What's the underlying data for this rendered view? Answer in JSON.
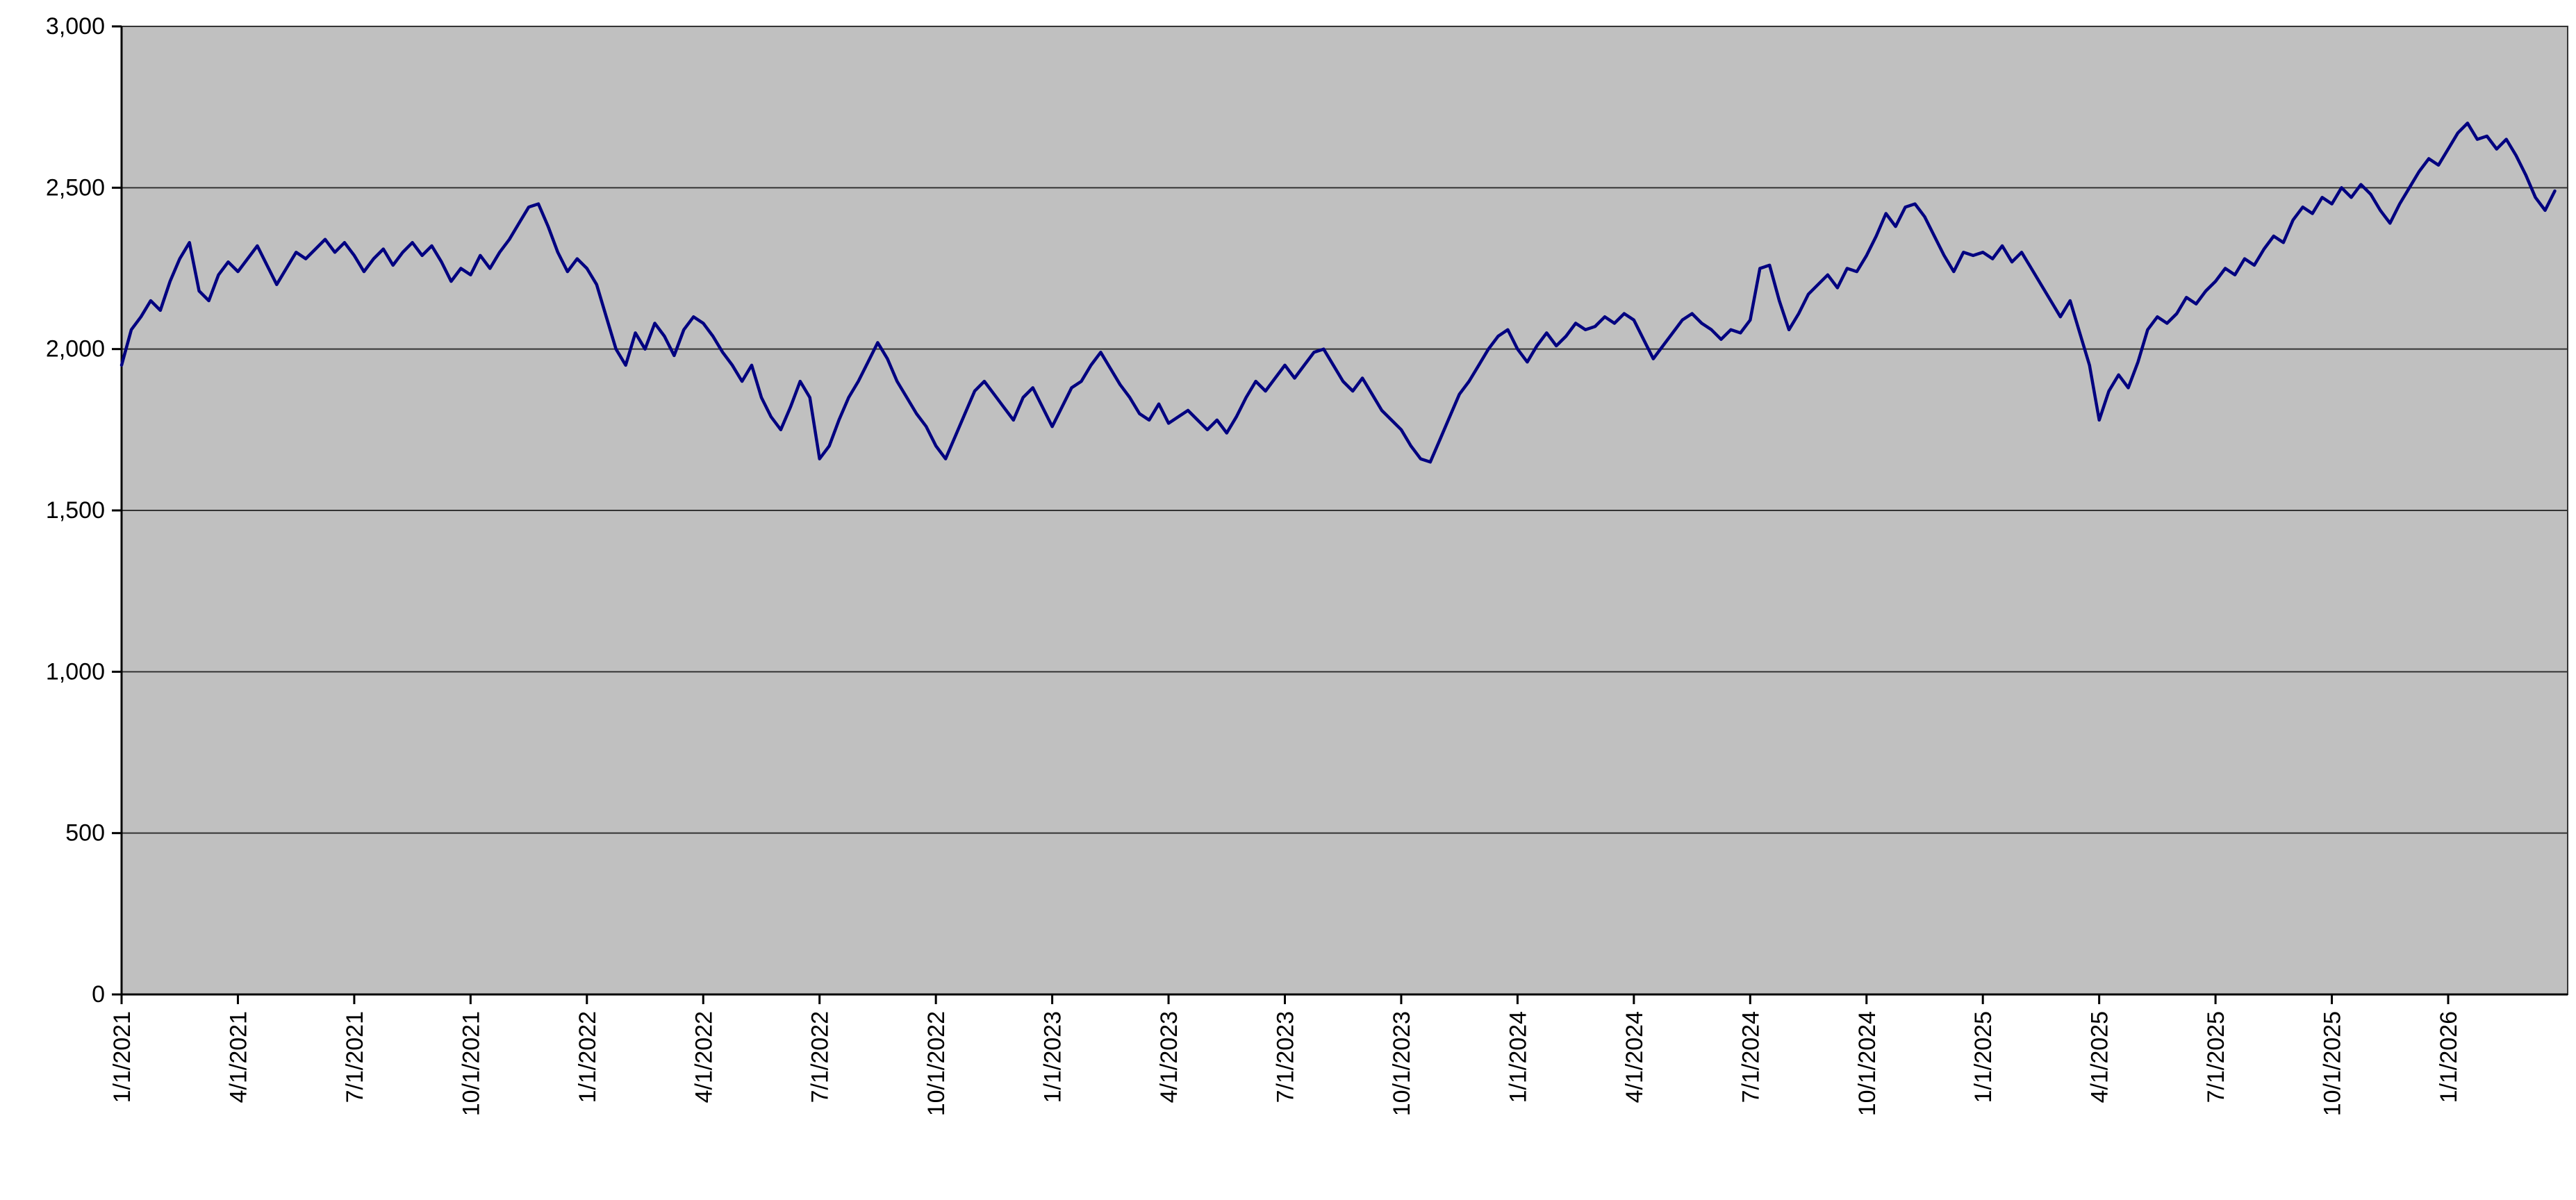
{
  "chart_data": {
    "type": "line",
    "title": "",
    "xlabel": "",
    "ylabel": "",
    "legend": false,
    "grid": "horizontal",
    "ylim": [
      0,
      3000
    ],
    "y_ticks": [
      0,
      500,
      1000,
      1500,
      2000,
      2500,
      3000
    ],
    "y_tick_labels": [
      "0",
      "500",
      "1,000",
      "1,500",
      "2,000",
      "2,500",
      "3,000"
    ],
    "x_tick_interval_months": 3,
    "x_tick_labels": [
      "1/1/2021",
      "4/1/2021",
      "7/1/2021",
      "10/1/2021",
      "1/1/2022",
      "4/1/2022",
      "7/1/2022",
      "10/1/2022",
      "1/1/2023",
      "4/1/2023",
      "7/1/2023",
      "10/1/2023",
      "1/1/2024",
      "4/1/2024",
      "7/1/2024",
      "10/1/2024",
      "1/1/2025",
      "4/1/2025",
      "7/1/2025",
      "10/1/2025",
      "1/1/2026"
    ],
    "x_start": "1/1/2021",
    "points_per_month": 4,
    "x_axis_months_span": 63.1,
    "values": [
      1950,
      2060,
      2100,
      2150,
      2120,
      2210,
      2280,
      2330,
      2180,
      2150,
      2230,
      2270,
      2240,
      2280,
      2320,
      2260,
      2200,
      2250,
      2300,
      2280,
      2310,
      2340,
      2300,
      2330,
      2290,
      2240,
      2280,
      2310,
      2260,
      2300,
      2330,
      2290,
      2320,
      2270,
      2210,
      2250,
      2230,
      2290,
      2250,
      2300,
      2340,
      2390,
      2440,
      2450,
      2380,
      2300,
      2240,
      2280,
      2250,
      2200,
      2100,
      2000,
      1950,
      2050,
      2000,
      2080,
      2040,
      1980,
      2060,
      2100,
      2080,
      2040,
      1990,
      1950,
      1900,
      1950,
      1850,
      1790,
      1750,
      1820,
      1900,
      1850,
      1660,
      1700,
      1780,
      1850,
      1900,
      1960,
      2020,
      1970,
      1900,
      1850,
      1800,
      1760,
      1700,
      1660,
      1730,
      1800,
      1870,
      1900,
      1860,
      1820,
      1780,
      1850,
      1880,
      1820,
      1760,
      1820,
      1880,
      1900,
      1950,
      1990,
      1940,
      1890,
      1850,
      1800,
      1780,
      1830,
      1770,
      1790,
      1810,
      1780,
      1750,
      1780,
      1740,
      1790,
      1850,
      1900,
      1870,
      1910,
      1950,
      1910,
      1950,
      1990,
      2000,
      1950,
      1900,
      1870,
      1910,
      1860,
      1810,
      1780,
      1750,
      1700,
      1660,
      1650,
      1720,
      1790,
      1860,
      1900,
      1950,
      2000,
      2040,
      2060,
      2000,
      1960,
      2010,
      2050,
      2010,
      2040,
      2080,
      2060,
      2070,
      2100,
      2080,
      2110,
      2090,
      2030,
      1970,
      2010,
      2050,
      2090,
      2110,
      2080,
      2060,
      2030,
      2060,
      2050,
      2090,
      2250,
      2260,
      2150,
      2060,
      2110,
      2170,
      2200,
      2230,
      2190,
      2250,
      2240,
      2290,
      2350,
      2420,
      2380,
      2440,
      2450,
      2410,
      2350,
      2290,
      2240,
      2300,
      2290,
      2300,
      2280,
      2320,
      2270,
      2300,
      2250,
      2200,
      2150,
      2100,
      2150,
      2050,
      1950,
      1780,
      1870,
      1920,
      1880,
      1960,
      2060,
      2100,
      2080,
      2110,
      2160,
      2140,
      2180,
      2210,
      2250,
      2230,
      2280,
      2260,
      2310,
      2350,
      2330,
      2400,
      2440,
      2420,
      2470,
      2450,
      2500,
      2470,
      2510,
      2480,
      2430,
      2390,
      2450,
      2500,
      2550,
      2590,
      2570,
      2620,
      2670,
      2700,
      2650,
      2660,
      2620,
      2650,
      2600,
      2540,
      2470,
      2430,
      2490
    ],
    "colors": {
      "line": "#000080",
      "plot_bg": "#c0c0c0",
      "gridline": "#333333",
      "axis": "#000000",
      "label": "#000000",
      "page_bg": "#ffffff"
    }
  }
}
